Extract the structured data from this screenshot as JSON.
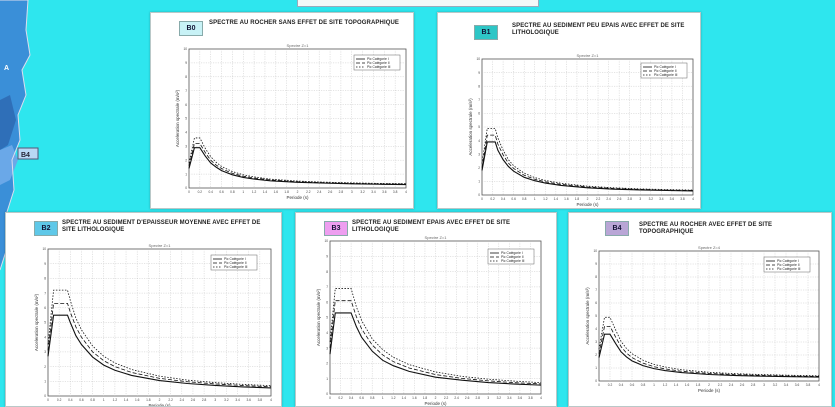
{
  "map": {
    "labels": [
      "A",
      "B4"
    ]
  },
  "panels": [
    {
      "id": "B0",
      "tag_color": "#c8f2f6",
      "title": "SPECTRE AU ROCHER SANS EFFET DE SITE TOPOGRAPHIQUE",
      "plot_title": "Spectre Z=1",
      "xlabel": "Periode (s)",
      "ylabel": "Acceleration spectrale (m/s²)",
      "legend": [
        "Pic Catégorie I",
        "Pic Catégorie II",
        "Pic Catégorie III"
      ]
    },
    {
      "id": "B1",
      "tag_color": "#2ec6c6",
      "title": "SPECTRE AU SEDIMENT PEU EPAIS AVEC EFFET DE SITE LITHOLOGIQUE",
      "plot_title": "Spectre Z=1",
      "xlabel": "Periode (s)",
      "ylabel": "Acceleration spectrale (m/s²)",
      "legend": [
        "Pic Catégorie I",
        "Pic Catégorie II",
        "Pic Catégorie III"
      ]
    },
    {
      "id": "B2",
      "tag_color": "#5fc8e8",
      "title": "SPECTRE AU SEDIMENT D'EPAISSEUR MOYENNE AVEC EFFET DE SITE LITHOLOGIQUE",
      "plot_title": "Spectre Z=1",
      "xlabel": "Periode (s)",
      "ylabel": "Acceleration spectrale (m/s²)",
      "legend": [
        "Pic Catégorie I",
        "Pic Catégorie II",
        "Pic Catégorie III"
      ]
    },
    {
      "id": "B3",
      "tag_color": "#ee9ef0",
      "title": "SPECTRE AU SEDIMENT EPAIS AVEC EFFET DE SITE LITHOLOGIQUE",
      "plot_title": "Spectre Z=1",
      "xlabel": "Periode (s)",
      "ylabel": "Acceleration spectrale (m/s²)",
      "legend": [
        "Pic Catégorie I",
        "Pic Catégorie II",
        "Pic Catégorie III"
      ]
    },
    {
      "id": "B4",
      "tag_color": "#b9a6d6",
      "title": "SPECTRE AU ROCHER AVEC EFFET DE SITE TOPOGRAPHIQUE",
      "plot_title": "Spectre Z=4",
      "xlabel": "Periode (s)",
      "ylabel": "Acceleration spectrale (m/s²)",
      "legend": [
        "Pic Catégorie I",
        "Pic Catégorie II",
        "Pic Catégorie III"
      ]
    }
  ],
  "chart_data": [
    {
      "type": "line",
      "panel": "B0",
      "xlim": [
        0,
        4
      ],
      "ylim": [
        0,
        10
      ],
      "grid": true,
      "legend_position": "top-right",
      "x_ticks": [
        0,
        0.2,
        0.4,
        0.6,
        0.8,
        1,
        1.2,
        1.4,
        1.6,
        1.8,
        2,
        2.2,
        2.4,
        2.6,
        2.8,
        3,
        3.2,
        3.4,
        3.6,
        3.8,
        4
      ],
      "y_ticks": [
        0,
        1,
        2,
        3,
        4,
        5,
        6,
        7,
        8,
        9,
        10
      ],
      "x": [
        0,
        0.1,
        0.15,
        0.2,
        0.3,
        0.4,
        0.5,
        0.6,
        0.8,
        1,
        1.2,
        1.5,
        2,
        2.5,
        3,
        3.5,
        4
      ],
      "series": [
        {
          "name": "Pic Catégorie I",
          "values": [
            1.4,
            2.9,
            2.9,
            2.9,
            2.3,
            1.8,
            1.5,
            1.25,
            0.95,
            0.76,
            0.64,
            0.52,
            0.41,
            0.35,
            0.3,
            0.27,
            0.25
          ]
        },
        {
          "name": "Pic Catégorie II",
          "values": [
            1.6,
            3.2,
            3.2,
            3.2,
            2.55,
            2.0,
            1.65,
            1.4,
            1.05,
            0.85,
            0.72,
            0.58,
            0.45,
            0.38,
            0.33,
            0.3,
            0.28
          ]
        },
        {
          "name": "Pic Catégorie III",
          "values": [
            1.8,
            3.6,
            3.6,
            3.6,
            2.85,
            2.25,
            1.85,
            1.55,
            1.18,
            0.95,
            0.8,
            0.64,
            0.5,
            0.42,
            0.37,
            0.33,
            0.31
          ]
        }
      ]
    },
    {
      "type": "line",
      "panel": "B1",
      "xlim": [
        0,
        4
      ],
      "ylim": [
        0,
        10
      ],
      "grid": true,
      "legend_position": "top-right",
      "x_ticks": [
        0,
        0.2,
        0.4,
        0.6,
        0.8,
        1,
        1.2,
        1.4,
        1.6,
        1.8,
        2,
        2.2,
        2.4,
        2.6,
        2.8,
        3,
        3.2,
        3.4,
        3.6,
        3.8,
        4
      ],
      "y_ticks": [
        0,
        1,
        2,
        3,
        4,
        5,
        6,
        7,
        8,
        9,
        10
      ],
      "x": [
        0,
        0.1,
        0.15,
        0.25,
        0.3,
        0.4,
        0.5,
        0.6,
        0.8,
        1,
        1.2,
        1.5,
        2,
        2.5,
        3,
        3.5,
        4
      ],
      "series": [
        {
          "name": "Pic Catégorie I",
          "values": [
            1.8,
            3.9,
            3.9,
            3.9,
            3.3,
            2.6,
            2.1,
            1.75,
            1.3,
            1.05,
            0.88,
            0.7,
            0.53,
            0.43,
            0.37,
            0.33,
            0.3
          ]
        },
        {
          "name": "Pic Catégorie II",
          "values": [
            2.0,
            4.4,
            4.4,
            4.4,
            3.75,
            2.95,
            2.35,
            1.95,
            1.45,
            1.16,
            0.97,
            0.78,
            0.59,
            0.48,
            0.41,
            0.36,
            0.33
          ]
        },
        {
          "name": "Pic Catégorie III",
          "values": [
            2.3,
            4.9,
            4.9,
            4.9,
            4.2,
            3.3,
            2.6,
            2.15,
            1.6,
            1.28,
            1.07,
            0.86,
            0.65,
            0.53,
            0.45,
            0.4,
            0.36
          ]
        }
      ]
    },
    {
      "type": "line",
      "panel": "B2",
      "xlim": [
        0,
        4
      ],
      "ylim": [
        0,
        10
      ],
      "grid": true,
      "legend_position": "top-right",
      "x_ticks": [
        0,
        0.2,
        0.4,
        0.6,
        0.8,
        1,
        1.2,
        1.4,
        1.6,
        1.8,
        2,
        2.2,
        2.4,
        2.6,
        2.8,
        3,
        3.2,
        3.4,
        3.6,
        3.8,
        4
      ],
      "y_ticks": [
        0,
        1,
        2,
        3,
        4,
        5,
        6,
        7,
        8,
        9,
        10
      ],
      "x": [
        0,
        0.1,
        0.15,
        0.35,
        0.4,
        0.5,
        0.6,
        0.8,
        1,
        1.2,
        1.5,
        2,
        2.5,
        3,
        3.5,
        4
      ],
      "series": [
        {
          "name": "Pic Catégorie I",
          "values": [
            2.7,
            5.5,
            5.5,
            5.5,
            5.0,
            4.1,
            3.5,
            2.65,
            2.1,
            1.75,
            1.4,
            1.05,
            0.85,
            0.72,
            0.62,
            0.55
          ]
        },
        {
          "name": "Pic Catégorie II",
          "values": [
            3.1,
            6.3,
            6.3,
            6.3,
            5.7,
            4.7,
            4.0,
            3.0,
            2.4,
            2.0,
            1.6,
            1.2,
            0.97,
            0.82,
            0.71,
            0.63
          ]
        },
        {
          "name": "Pic Catégorie III",
          "values": [
            3.5,
            7.2,
            7.2,
            7.2,
            6.5,
            5.3,
            4.5,
            3.4,
            2.7,
            2.25,
            1.8,
            1.35,
            1.08,
            0.91,
            0.79,
            0.7
          ]
        }
      ]
    },
    {
      "type": "line",
      "panel": "B3",
      "xlim": [
        0,
        4
      ],
      "ylim": [
        0,
        10
      ],
      "grid": true,
      "legend_position": "top-right",
      "x_ticks": [
        0,
        0.2,
        0.4,
        0.6,
        0.8,
        1,
        1.2,
        1.4,
        1.6,
        1.8,
        2,
        2.2,
        2.4,
        2.6,
        2.8,
        3,
        3.2,
        3.4,
        3.6,
        3.8,
        4
      ],
      "y_ticks": [
        0,
        1,
        2,
        3,
        4,
        5,
        6,
        7,
        8,
        9,
        10
      ],
      "x": [
        0,
        0.1,
        0.15,
        0.4,
        0.5,
        0.6,
        0.8,
        1,
        1.2,
        1.5,
        2,
        2.5,
        3,
        3.5,
        4
      ],
      "series": [
        {
          "name": "Pic Catégorie I",
          "values": [
            2.6,
            5.3,
            5.3,
            5.3,
            4.4,
            3.7,
            2.8,
            2.2,
            1.85,
            1.48,
            1.1,
            0.9,
            0.75,
            0.65,
            0.58
          ]
        },
        {
          "name": "Pic Catégorie II",
          "values": [
            3.0,
            6.1,
            6.1,
            6.1,
            5.05,
            4.25,
            3.2,
            2.55,
            2.12,
            1.7,
            1.27,
            1.02,
            0.86,
            0.74,
            0.66
          ]
        },
        {
          "name": "Pic Catégorie III",
          "values": [
            3.4,
            6.9,
            6.9,
            6.9,
            5.7,
            4.8,
            3.6,
            2.9,
            2.4,
            1.92,
            1.44,
            1.15,
            0.97,
            0.84,
            0.74
          ]
        }
      ]
    },
    {
      "type": "line",
      "panel": "B4",
      "xlim": [
        0,
        4
      ],
      "ylim": [
        0,
        10
      ],
      "grid": true,
      "legend_position": "top-right",
      "x_ticks": [
        0,
        0.2,
        0.4,
        0.6,
        0.8,
        1,
        1.2,
        1.4,
        1.6,
        1.8,
        2,
        2.2,
        2.4,
        2.6,
        2.8,
        3,
        3.2,
        3.4,
        3.6,
        3.8,
        4
      ],
      "y_ticks": [
        0,
        1,
        2,
        3,
        4,
        5,
        6,
        7,
        8,
        9,
        10
      ],
      "x": [
        0,
        0.1,
        0.15,
        0.2,
        0.3,
        0.4,
        0.5,
        0.6,
        0.8,
        1,
        1.2,
        1.5,
        2,
        2.5,
        3,
        3.5,
        4
      ],
      "series": [
        {
          "name": "Pic Catégorie I",
          "values": [
            1.8,
            3.6,
            3.6,
            3.6,
            2.9,
            2.25,
            1.85,
            1.55,
            1.18,
            0.95,
            0.8,
            0.65,
            0.5,
            0.42,
            0.37,
            0.33,
            0.3
          ]
        },
        {
          "name": "Pic Catégorie II",
          "values": [
            2.1,
            4.2,
            4.2,
            4.2,
            3.4,
            2.65,
            2.15,
            1.8,
            1.37,
            1.1,
            0.93,
            0.75,
            0.58,
            0.49,
            0.43,
            0.38,
            0.35
          ]
        },
        {
          "name": "Pic Catégorie III",
          "values": [
            2.45,
            4.9,
            4.9,
            4.9,
            3.95,
            3.05,
            2.5,
            2.1,
            1.6,
            1.28,
            1.08,
            0.87,
            0.67,
            0.56,
            0.49,
            0.44,
            0.4
          ]
        }
      ]
    }
  ]
}
